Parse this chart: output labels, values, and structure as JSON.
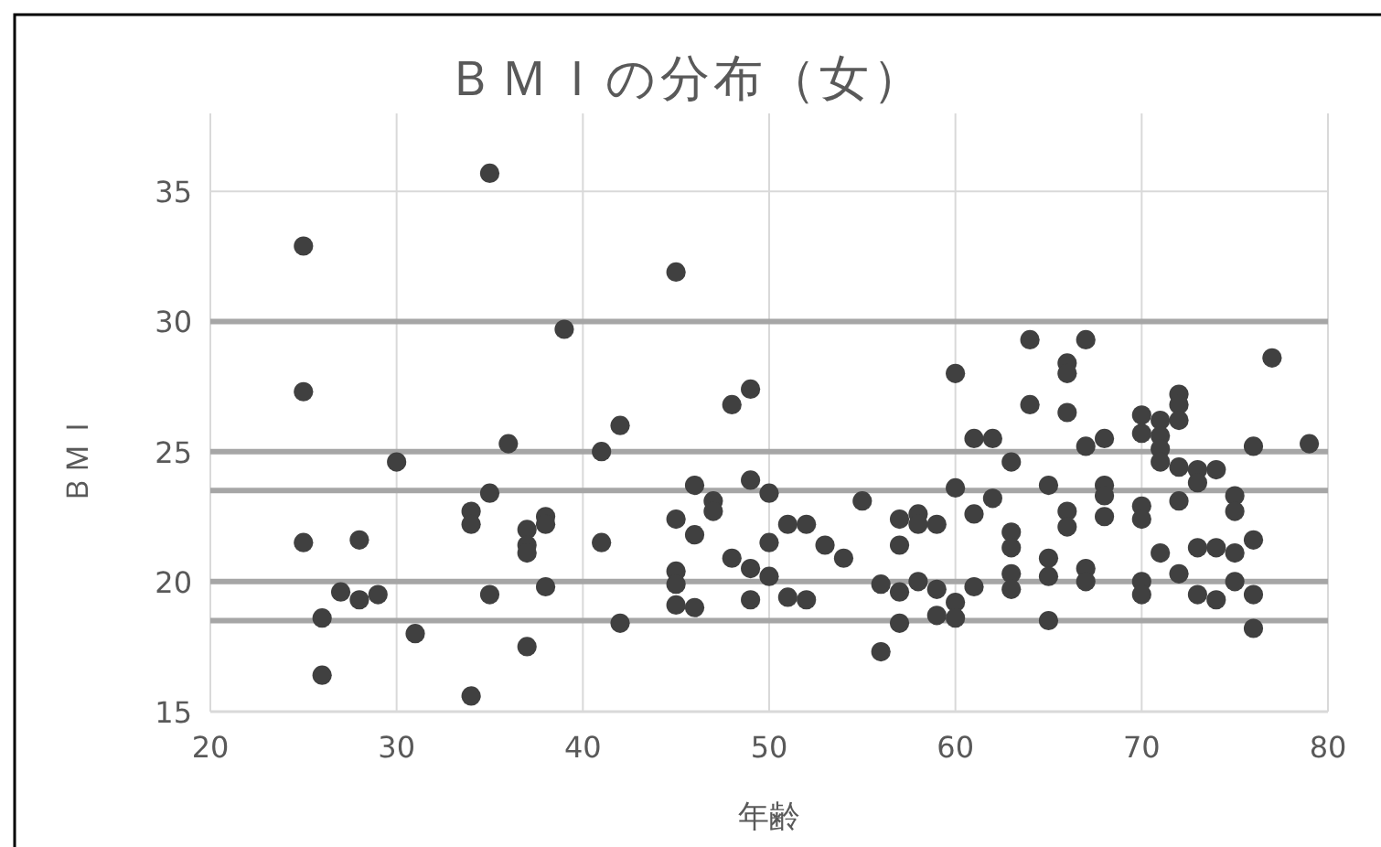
{
  "chart_data": {
    "type": "scatter",
    "title": "ＢＭＩの分布（女）",
    "xlabel": "年齢",
    "ylabel": "ＢＭＩ",
    "color": "#404040",
    "marker": "circle",
    "grid": true,
    "xlim": [
      20,
      80
    ],
    "xticks": [
      20,
      30,
      40,
      50,
      60,
      70,
      80
    ],
    "ylim": [
      15,
      38
    ],
    "yticks": [
      15,
      20,
      25,
      30,
      35
    ],
    "ref_lines": [
      {
        "axis": "y",
        "value": 18.5,
        "color": "#a6a6a6"
      },
      {
        "axis": "y",
        "value": 20,
        "color": "#a6a6a6"
      },
      {
        "axis": "y",
        "value": 23.5,
        "color": "#a6a6a6"
      },
      {
        "axis": "y",
        "value": 25,
        "color": "#a6a6a6"
      },
      {
        "axis": "y",
        "value": 30,
        "color": "#a6a6a6"
      }
    ],
    "x": [
      35,
      25,
      45,
      39,
      25,
      49,
      48,
      42,
      36,
      41,
      30,
      35,
      46,
      49,
      50,
      47,
      47,
      34,
      34,
      38,
      38,
      37,
      37,
      37,
      25,
      28,
      41,
      45,
      46,
      50,
      48,
      49,
      50,
      45,
      45,
      27,
      28,
      29,
      35,
      38,
      45,
      46,
      49,
      26,
      31,
      42,
      37,
      26,
      34,
      64,
      67,
      66,
      66,
      77,
      60,
      64,
      66,
      70,
      70,
      71,
      72,
      72,
      72,
      71,
      71,
      71,
      72,
      73,
      73,
      74,
      61,
      62,
      67,
      68,
      76,
      79,
      63,
      60,
      65,
      62,
      61,
      68,
      68,
      68,
      66,
      66,
      70,
      70,
      72,
      75,
      75,
      55,
      57,
      58,
      58,
      59,
      57,
      51,
      52,
      53,
      54,
      63,
      63,
      65,
      65,
      67,
      67,
      63,
      63,
      61,
      60,
      60,
      59,
      58,
      57,
      56,
      59,
      57,
      56,
      65,
      51,
      52,
      71,
      72,
      73,
      74,
      75,
      76,
      73,
      74,
      75,
      76,
      76,
      70,
      70
    ],
    "values": [
      35.7,
      32.9,
      31.9,
      29.7,
      27.3,
      27.4,
      26.8,
      26.0,
      25.3,
      25.0,
      24.6,
      23.4,
      23.7,
      23.9,
      23.4,
      23.1,
      22.7,
      22.7,
      22.2,
      22.5,
      22.2,
      22.0,
      21.4,
      21.1,
      21.5,
      21.6,
      21.5,
      22.4,
      21.8,
      21.5,
      20.9,
      20.5,
      20.2,
      20.4,
      19.9,
      19.6,
      19.3,
      19.5,
      19.5,
      19.8,
      19.1,
      19.0,
      19.3,
      18.6,
      18.0,
      18.4,
      17.5,
      16.4,
      15.6,
      29.3,
      29.3,
      28.4,
      28.0,
      28.6,
      28.0,
      26.8,
      26.5,
      26.4,
      25.7,
      26.2,
      27.2,
      26.8,
      26.2,
      25.6,
      25.1,
      24.6,
      24.4,
      24.3,
      23.8,
      24.3,
      25.5,
      25.5,
      25.2,
      25.5,
      25.2,
      25.3,
      24.6,
      23.6,
      23.7,
      23.2,
      22.6,
      23.7,
      23.3,
      22.5,
      22.7,
      22.1,
      22.9,
      22.4,
      23.1,
      23.3,
      22.7,
      23.1,
      22.4,
      22.6,
      22.2,
      22.2,
      21.4,
      22.2,
      22.2,
      21.4,
      20.9,
      21.9,
      21.3,
      20.9,
      20.2,
      20.5,
      20.0,
      20.3,
      19.7,
      19.8,
      19.2,
      18.6,
      18.7,
      20.0,
      19.6,
      19.9,
      19.7,
      18.4,
      17.3,
      18.5,
      19.4,
      19.3,
      21.1,
      20.3,
      21.3,
      21.3,
      21.1,
      21.6,
      19.5,
      19.3,
      20.0,
      19.5,
      18.2,
      20.0,
      19.5
    ]
  }
}
